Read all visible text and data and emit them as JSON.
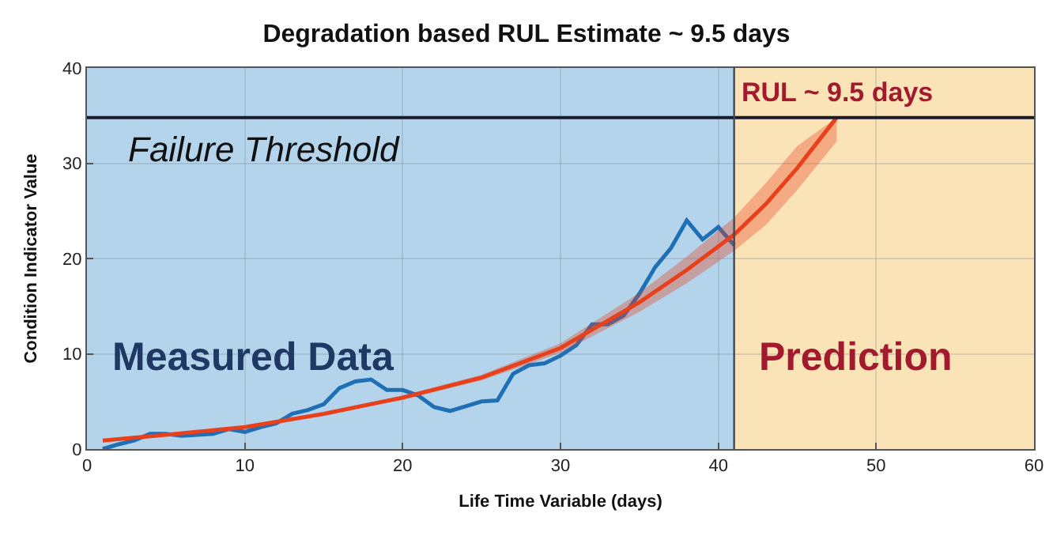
{
  "chart_data": {
    "type": "line",
    "title": "Degradation based RUL Estimate ~ 9.5 days",
    "xlabel": "Life Time Variable (days)",
    "ylabel": "Condition Indicator Value",
    "xlim": [
      0,
      60
    ],
    "xticks": [
      0,
      10,
      20,
      30,
      40,
      50,
      60
    ],
    "ylim": [
      0,
      40
    ],
    "yticks": [
      0,
      10,
      20,
      30,
      40
    ],
    "grid": true,
    "marker": "none",
    "line_style": "solid",
    "series": [
      {
        "color": "#1f6fb5",
        "x": [
          1,
          2,
          3,
          4,
          5,
          6,
          7,
          8,
          9,
          10,
          11,
          12,
          13,
          14,
          15,
          16,
          17,
          18,
          19,
          20,
          21,
          22,
          23,
          24,
          25,
          26,
          27,
          28,
          29,
          30,
          31,
          32,
          33,
          34,
          35,
          36,
          37,
          38,
          39,
          40,
          41
        ],
        "values": [
          0,
          0.5,
          0.9,
          1.6,
          1.6,
          1.4,
          1.5,
          1.6,
          2.1,
          1.8,
          2.3,
          2.7,
          3.7,
          4.1,
          4.7,
          6.4,
          7.1,
          7.3,
          6.2,
          6.2,
          5.6,
          4.4,
          4.0,
          4.5,
          5.0,
          5.1,
          7.9,
          8.8,
          9.0,
          9.8,
          10.9,
          13.1,
          13.1,
          14.0,
          16.3,
          19.1,
          21.1,
          24.0,
          22.0,
          23.3,
          21.4
        ]
      },
      {
        "color": "#e8401c",
        "x": [
          1,
          5,
          10,
          15,
          20,
          25,
          30,
          35,
          38,
          41,
          43,
          45,
          47.5
        ],
        "values": [
          0.9,
          1.5,
          2.3,
          3.7,
          5.4,
          7.5,
          10.6,
          15.4,
          18.8,
          22.5,
          25.7,
          29.5,
          34.8
        ],
        "lower": [
          0.9,
          1.5,
          2.2,
          3.6,
          5.2,
          7.2,
          10.1,
          14.4,
          17.4,
          20.8,
          23.5,
          27.2,
          32.3
        ],
        "upper": [
          0.9,
          1.5,
          2.4,
          3.8,
          5.6,
          7.8,
          11.1,
          16.4,
          20.2,
          24.3,
          27.9,
          31.8,
          34.8
        ]
      }
    ],
    "bands": [
      {
        "axis": "x",
        "from": 0,
        "to": 41,
        "label": "Measured Data",
        "color": "#b3d4ea"
      },
      {
        "axis": "x",
        "from": 41,
        "to": 60,
        "label": "Prediction",
        "color": "#fbe3b8"
      }
    ],
    "ref_lines": [
      {
        "axis": "y",
        "value": 34.8,
        "label": "Failure Threshold",
        "color": "#1a1a2e"
      },
      {
        "axis": "x",
        "value": 41,
        "color": "#3a4a5a"
      }
    ],
    "annotations": [
      {
        "text": "RUL ~ 9.5 days",
        "x": 47.5,
        "y": 34.8
      }
    ]
  }
}
